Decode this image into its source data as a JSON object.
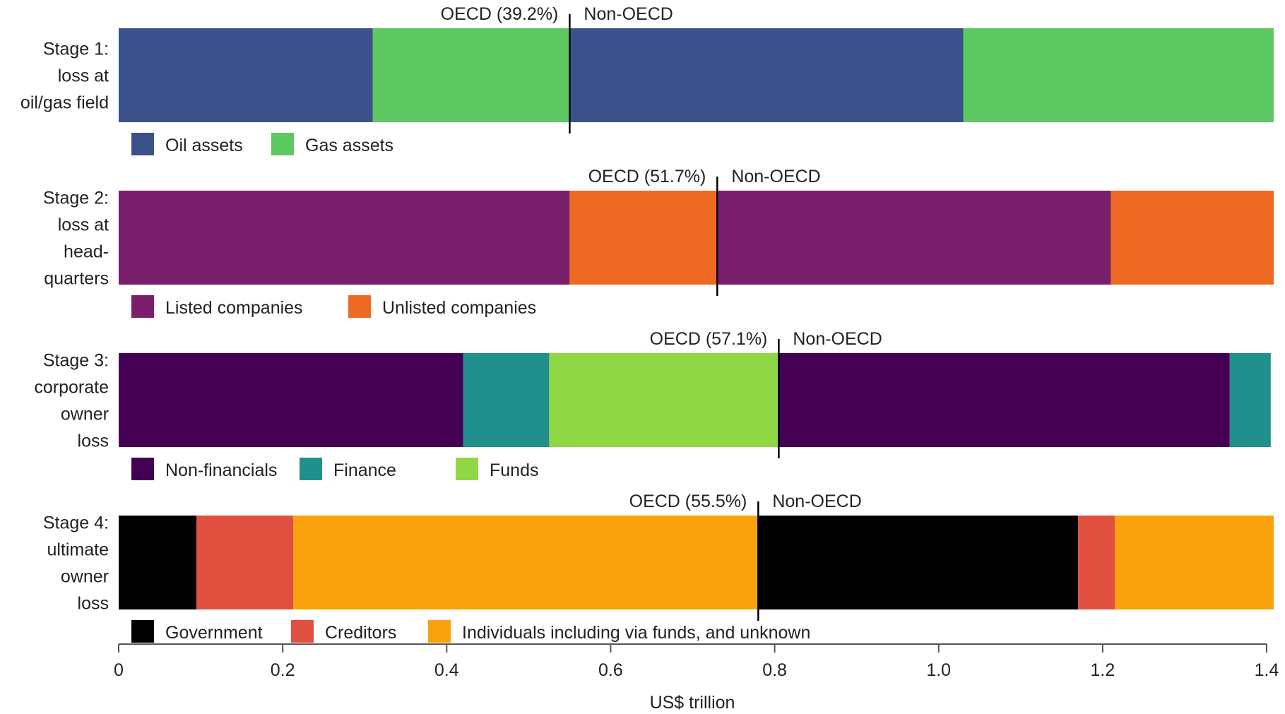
{
  "chart_data": {
    "type": "bar",
    "orientation": "horizontal-stacked",
    "xlabel": "US$ trillion",
    "xlim": [
      0,
      1.4
    ],
    "xticks": [
      0,
      0.2,
      0.4,
      0.6,
      0.8,
      1.0,
      1.2,
      1.4
    ],
    "xtick_labels": [
      "0",
      "0.2",
      "0.4",
      "0.6",
      "0.8",
      "1.0",
      "1.2",
      "1.4"
    ],
    "grid": false,
    "divider_labels": {
      "left_suffix": "",
      "right": "Non-OECD"
    },
    "stages": [
      {
        "label_lines": [
          "Stage 1:",
          "loss at",
          "oil/gas field"
        ],
        "divider": 0.55,
        "oecd_label": "OECD (39.2%)",
        "non_oecd_label": "Non-OECD",
        "segments": [
          {
            "category": "Oil assets",
            "start": 0,
            "end": 0.31
          },
          {
            "category": "Gas assets",
            "start": 0.31,
            "end": 0.55
          },
          {
            "category": "Oil assets",
            "start": 0.55,
            "end": 1.03
          },
          {
            "category": "Gas assets",
            "start": 1.03,
            "end": 1.41
          }
        ],
        "legend": [
          {
            "name": "Oil assets",
            "color": "#3b518b"
          },
          {
            "name": "Gas assets",
            "color": "#5ec962"
          }
        ]
      },
      {
        "label_lines": [
          "Stage 2:",
          "loss at",
          "head-",
          "quarters"
        ],
        "divider": 0.73,
        "oecd_label": "OECD (51.7%)",
        "non_oecd_label": "Non-OECD",
        "segments": [
          {
            "category": "Listed companies",
            "start": 0,
            "end": 0.55
          },
          {
            "category": "Unlisted companies",
            "start": 0.55,
            "end": 0.73
          },
          {
            "category": "Listed companies",
            "start": 0.73,
            "end": 1.21
          },
          {
            "category": "Unlisted companies",
            "start": 1.21,
            "end": 1.41
          }
        ],
        "legend": [
          {
            "name": "Listed companies",
            "color": "#7a1f6b"
          },
          {
            "name": "Unlisted companies",
            "color": "#ee6a24"
          }
        ]
      },
      {
        "label_lines": [
          "Stage 3:",
          "corporate",
          "owner",
          "loss"
        ],
        "divider": 0.805,
        "oecd_label": "OECD (57.1%)",
        "non_oecd_label": "Non-OECD",
        "segments": [
          {
            "category": "Non-financials",
            "start": 0,
            "end": 0.42
          },
          {
            "category": "Finance",
            "start": 0.42,
            "end": 0.525
          },
          {
            "category": "Funds",
            "start": 0.525,
            "end": 0.805
          },
          {
            "category": "Non-financials",
            "start": 0.805,
            "end": 1.355
          },
          {
            "category": "Finance",
            "start": 1.355,
            "end": 1.405
          }
        ],
        "legend": [
          {
            "name": "Non-financials",
            "color": "#440154"
          },
          {
            "name": "Finance",
            "color": "#21908d"
          },
          {
            "name": "Funds",
            "color": "#8fd744"
          }
        ]
      },
      {
        "label_lines": [
          "Stage 4:",
          "ultimate",
          "owner",
          "loss"
        ],
        "divider": 0.78,
        "oecd_label": "OECD (55.5%)",
        "non_oecd_label": "Non-OECD",
        "segments": [
          {
            "category": "Government",
            "start": 0,
            "end": 0.095
          },
          {
            "category": "Creditors",
            "start": 0.095,
            "end": 0.213
          },
          {
            "category": "Individuals including via funds, and unknown",
            "start": 0.213,
            "end": 0.78
          },
          {
            "category": "Government",
            "start": 0.78,
            "end": 1.17
          },
          {
            "category": "Creditors",
            "start": 1.17,
            "end": 1.215
          },
          {
            "category": "Individuals including via funds, and unknown",
            "start": 1.215,
            "end": 1.41
          }
        ],
        "legend": [
          {
            "name": "Government",
            "color": "#000000"
          },
          {
            "name": "Creditors",
            "color": "#e1503f"
          },
          {
            "name": "Individuals including via funds, and unknown",
            "color": "#f9a20e"
          }
        ]
      }
    ]
  }
}
